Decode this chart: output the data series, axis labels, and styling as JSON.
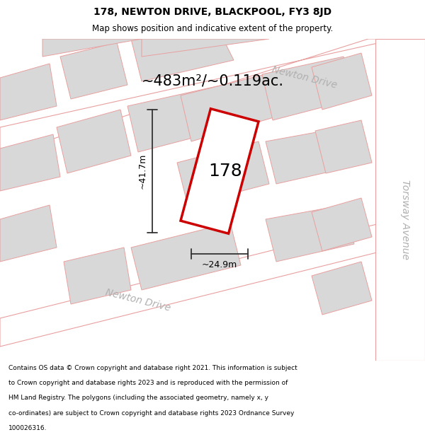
{
  "title_line1": "178, NEWTON DRIVE, BLACKPOOL, FY3 8JD",
  "title_line2": "Map shows position and indicative extent of the property.",
  "area_label": "~483m²/~0.119ac.",
  "property_number": "178",
  "dim_height": "~41.7m",
  "dim_width": "~24.9m",
  "street_label1": "Newton Drive",
  "street_label2": "Newton Drive",
  "avenue_label": "Torsway Avenue",
  "footer_lines": [
    "Contains OS data © Crown copyright and database right 2021. This information is subject",
    "to Crown copyright and database rights 2023 and is reproduced with the permission of",
    "HM Land Registry. The polygons (including the associated geometry, namely x, y",
    "co-ordinates) are subject to Crown copyright and database rights 2023 Ordnance Survey",
    "100026316."
  ],
  "map_bg": "#efefef",
  "road_color": "#ffffff",
  "block_color": "#d8d8d8",
  "road_outline_color": "#e8a0a0",
  "property_outline_color": "#cc0000",
  "property_fill": "#ffffff",
  "dim_color": "#333333",
  "street_text_color": "#b0b0b0",
  "title_fontsize": 10,
  "subtitle_fontsize": 8.5,
  "area_fontsize": 15,
  "number_fontsize": 18,
  "dim_fontsize": 9,
  "street_fontsize": 10,
  "footer_fontsize": 6.5
}
